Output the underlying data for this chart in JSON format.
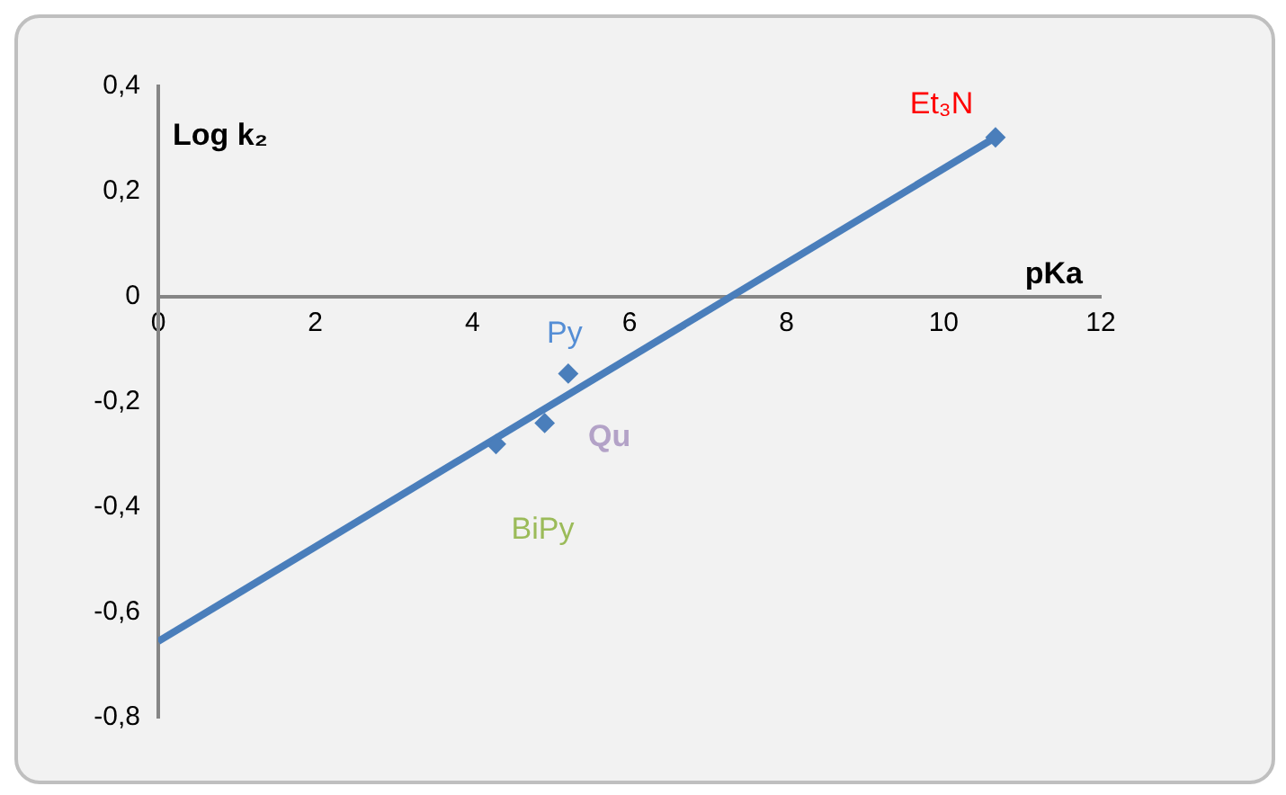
{
  "chart_data": {
    "type": "scatter",
    "xlabel": "pKa",
    "ylabel": "Log k₂",
    "series": [
      {
        "color": "#4a7ebb",
        "marker": "diamond",
        "x": [
          10.66,
          5.22,
          4.92,
          4.3
        ],
        "values": [
          0.303,
          -0.146,
          -0.24,
          -0.28
        ]
      },
      {
        "type": "line",
        "color": "#4a7ebb",
        "marker": "none",
        "line_style": "solid",
        "x": [
          0,
          10.66
        ],
        "values": [
          -0.655,
          0.303
        ]
      }
    ],
    "annotations": [
      {
        "text": "Et₃N",
        "x": 10.66,
        "y": 0.303
      },
      {
        "text": "Py",
        "x": 5.22,
        "y": -0.146
      },
      {
        "text": "Qu",
        "x": 4.92,
        "y": -0.24
      },
      {
        "text": "BiPy",
        "x": 4.3,
        "y": -0.28
      }
    ],
    "xlim": [
      0,
      12
    ],
    "xticks": [
      0,
      2,
      4,
      6,
      8,
      10,
      12
    ],
    "ylim": [
      -0.8,
      0.4
    ],
    "yticks": [
      {
        "value": -0.8,
        "label": "-0,8"
      },
      {
        "value": -0.6,
        "label": "-0,6"
      },
      {
        "value": -0.4,
        "label": "-0,4"
      },
      {
        "value": -0.2,
        "label": "-0,2"
      },
      {
        "value": 0,
        "label": "0"
      },
      {
        "value": 0.2,
        "label": "0,2"
      },
      {
        "value": 0.4,
        "label": "0,4"
      }
    ],
    "grid": false,
    "legend": false
  }
}
